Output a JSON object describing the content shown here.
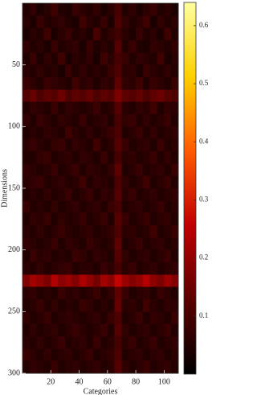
{
  "chart_data": {
    "type": "heatmap",
    "xlabel": "Categories",
    "ylabel": "Dimensions",
    "xbins": [
      0,
      5,
      10,
      15,
      20,
      25,
      30,
      35,
      40,
      45,
      50,
      55,
      60,
      65,
      70,
      75,
      80,
      85,
      90,
      95,
      100,
      105,
      110
    ],
    "ybins": [
      0,
      10,
      20,
      30,
      40,
      50,
      60,
      70,
      80,
      90,
      100,
      110,
      120,
      130,
      140,
      150,
      160,
      170,
      180,
      190,
      200,
      210,
      220,
      230,
      240,
      250,
      260,
      270,
      280,
      290,
      300
    ],
    "xlim": [
      0,
      110
    ],
    "ylim": [
      0,
      300
    ],
    "xticks": [
      20,
      40,
      60,
      80,
      100
    ],
    "yticks": [
      50,
      100,
      150,
      200,
      250,
      300
    ],
    "zlim": [
      0,
      0.64
    ],
    "zticks": [
      0.1,
      0.2,
      0.3,
      0.4,
      0.5,
      0.6
    ],
    "colormap": [
      "#000000",
      "#5a0000",
      "#c00000",
      "#ff5a00",
      "#ffd000",
      "#ffffa0"
    ],
    "values": [
      [
        0.05,
        0.07,
        0.04,
        0.06,
        0.09,
        0.05,
        0.04,
        0.08,
        0.06,
        0.05,
        0.07,
        0.04,
        0.06,
        0.1,
        0.05,
        0.07,
        0.04,
        0.06,
        0.08,
        0.05,
        0.06,
        0.04
      ],
      [
        0.06,
        0.04,
        0.08,
        0.05,
        0.06,
        0.07,
        0.05,
        0.04,
        0.09,
        0.06,
        0.05,
        0.08,
        0.04,
        0.11,
        0.07,
        0.05,
        0.06,
        0.09,
        0.04,
        0.07,
        0.05,
        0.06
      ],
      [
        0.04,
        0.06,
        0.05,
        0.09,
        0.04,
        0.06,
        0.08,
        0.05,
        0.06,
        0.04,
        0.1,
        0.05,
        0.07,
        0.09,
        0.06,
        0.04,
        0.08,
        0.05,
        0.06,
        0.04,
        0.09,
        0.05
      ],
      [
        0.07,
        0.05,
        0.06,
        0.04,
        0.08,
        0.05,
        0.06,
        0.07,
        0.04,
        0.08,
        0.05,
        0.06,
        0.05,
        0.12,
        0.05,
        0.08,
        0.05,
        0.04,
        0.07,
        0.06,
        0.05,
        0.07
      ],
      [
        0.05,
        0.08,
        0.04,
        0.07,
        0.05,
        0.09,
        0.04,
        0.06,
        0.05,
        0.07,
        0.04,
        0.09,
        0.06,
        0.1,
        0.08,
        0.05,
        0.07,
        0.06,
        0.05,
        0.09,
        0.04,
        0.06
      ],
      [
        0.06,
        0.05,
        0.07,
        0.05,
        0.06,
        0.04,
        0.08,
        0.05,
        0.07,
        0.05,
        0.06,
        0.05,
        0.08,
        0.11,
        0.06,
        0.07,
        0.04,
        0.08,
        0.06,
        0.05,
        0.07,
        0.05
      ],
      [
        0.08,
        0.06,
        0.05,
        0.08,
        0.07,
        0.06,
        0.05,
        0.09,
        0.06,
        0.07,
        0.05,
        0.07,
        0.06,
        0.13,
        0.07,
        0.06,
        0.09,
        0.05,
        0.08,
        0.06,
        0.05,
        0.08
      ],
      [
        0.12,
        0.14,
        0.11,
        0.13,
        0.12,
        0.15,
        0.11,
        0.13,
        0.12,
        0.14,
        0.11,
        0.13,
        0.12,
        0.17,
        0.13,
        0.12,
        0.14,
        0.11,
        0.13,
        0.15,
        0.12,
        0.11
      ],
      [
        0.05,
        0.07,
        0.06,
        0.05,
        0.08,
        0.05,
        0.07,
        0.06,
        0.05,
        0.06,
        0.08,
        0.05,
        0.06,
        0.12,
        0.06,
        0.05,
        0.07,
        0.06,
        0.09,
        0.05,
        0.07,
        0.06
      ],
      [
        0.07,
        0.05,
        0.08,
        0.06,
        0.05,
        0.07,
        0.06,
        0.05,
        0.08,
        0.05,
        0.06,
        0.07,
        0.05,
        0.1,
        0.07,
        0.08,
        0.05,
        0.07,
        0.05,
        0.06,
        0.08,
        0.05
      ],
      [
        0.05,
        0.06,
        0.05,
        0.07,
        0.06,
        0.05,
        0.09,
        0.06,
        0.05,
        0.07,
        0.05,
        0.06,
        0.08,
        0.11,
        0.05,
        0.06,
        0.08,
        0.05,
        0.07,
        0.05,
        0.06,
        0.07
      ],
      [
        0.06,
        0.08,
        0.06,
        0.05,
        0.07,
        0.08,
        0.05,
        0.07,
        0.06,
        0.05,
        0.09,
        0.05,
        0.06,
        0.12,
        0.08,
        0.05,
        0.06,
        0.07,
        0.05,
        0.08,
        0.05,
        0.06
      ],
      [
        0.05,
        0.05,
        0.07,
        0.08,
        0.05,
        0.06,
        0.07,
        0.05,
        0.07,
        0.06,
        0.05,
        0.08,
        0.05,
        0.1,
        0.06,
        0.07,
        0.05,
        0.06,
        0.08,
        0.05,
        0.07,
        0.05
      ],
      [
        0.07,
        0.06,
        0.05,
        0.06,
        0.08,
        0.05,
        0.06,
        0.08,
        0.05,
        0.07,
        0.06,
        0.05,
        0.07,
        0.13,
        0.05,
        0.06,
        0.08,
        0.05,
        0.06,
        0.07,
        0.05,
        0.08
      ],
      [
        0.06,
        0.07,
        0.08,
        0.05,
        0.06,
        0.07,
        0.05,
        0.06,
        0.09,
        0.05,
        0.07,
        0.06,
        0.05,
        0.11,
        0.07,
        0.05,
        0.06,
        0.09,
        0.05,
        0.06,
        0.08,
        0.05
      ],
      [
        0.05,
        0.06,
        0.05,
        0.07,
        0.05,
        0.06,
        0.08,
        0.05,
        0.06,
        0.08,
        0.05,
        0.07,
        0.06,
        0.12,
        0.06,
        0.08,
        0.05,
        0.06,
        0.07,
        0.05,
        0.06,
        0.07
      ],
      [
        0.08,
        0.05,
        0.06,
        0.05,
        0.07,
        0.05,
        0.06,
        0.07,
        0.05,
        0.06,
        0.07,
        0.05,
        0.08,
        0.1,
        0.05,
        0.06,
        0.07,
        0.05,
        0.06,
        0.08,
        0.05,
        0.06
      ],
      [
        0.05,
        0.07,
        0.06,
        0.08,
        0.05,
        0.07,
        0.05,
        0.06,
        0.08,
        0.05,
        0.06,
        0.08,
        0.05,
        0.12,
        0.08,
        0.05,
        0.06,
        0.08,
        0.05,
        0.06,
        0.07,
        0.05
      ],
      [
        0.06,
        0.05,
        0.07,
        0.05,
        0.06,
        0.08,
        0.06,
        0.05,
        0.06,
        0.07,
        0.05,
        0.06,
        0.07,
        0.11,
        0.06,
        0.07,
        0.05,
        0.06,
        0.09,
        0.05,
        0.06,
        0.08
      ],
      [
        0.07,
        0.06,
        0.05,
        0.06,
        0.08,
        0.05,
        0.07,
        0.06,
        0.05,
        0.08,
        0.06,
        0.05,
        0.06,
        0.13,
        0.05,
        0.06,
        0.08,
        0.05,
        0.06,
        0.07,
        0.05,
        0.06
      ],
      [
        0.05,
        0.08,
        0.06,
        0.07,
        0.05,
        0.06,
        0.05,
        0.08,
        0.07,
        0.05,
        0.07,
        0.06,
        0.05,
        0.12,
        0.07,
        0.05,
        0.06,
        0.07,
        0.05,
        0.06,
        0.08,
        0.05
      ],
      [
        0.06,
        0.05,
        0.07,
        0.05,
        0.06,
        0.07,
        0.08,
        0.05,
        0.06,
        0.06,
        0.05,
        0.08,
        0.06,
        0.1,
        0.06,
        0.08,
        0.05,
        0.06,
        0.07,
        0.05,
        0.06,
        0.07
      ],
      [
        0.18,
        0.22,
        0.2,
        0.17,
        0.24,
        0.19,
        0.21,
        0.18,
        0.23,
        0.2,
        0.16,
        0.22,
        0.19,
        0.26,
        0.21,
        0.18,
        0.2,
        0.24,
        0.19,
        0.17,
        0.21,
        0.18
      ],
      [
        0.06,
        0.07,
        0.05,
        0.06,
        0.05,
        0.08,
        0.06,
        0.07,
        0.05,
        0.06,
        0.08,
        0.05,
        0.07,
        0.13,
        0.08,
        0.05,
        0.06,
        0.07,
        0.05,
        0.08,
        0.06,
        0.05
      ],
      [
        0.05,
        0.06,
        0.08,
        0.05,
        0.07,
        0.05,
        0.06,
        0.05,
        0.08,
        0.07,
        0.05,
        0.06,
        0.05,
        0.14,
        0.06,
        0.07,
        0.05,
        0.09,
        0.06,
        0.05,
        0.07,
        0.06
      ],
      [
        0.07,
        0.05,
        0.06,
        0.08,
        0.05,
        0.06,
        0.07,
        0.06,
        0.05,
        0.06,
        0.07,
        0.05,
        0.08,
        0.11,
        0.05,
        0.06,
        0.08,
        0.05,
        0.07,
        0.06,
        0.05,
        0.08
      ],
      [
        0.05,
        0.07,
        0.05,
        0.06,
        0.07,
        0.05,
        0.06,
        0.08,
        0.06,
        0.05,
        0.06,
        0.08,
        0.05,
        0.12,
        0.07,
        0.05,
        0.06,
        0.07,
        0.05,
        0.06,
        0.08,
        0.05
      ],
      [
        0.06,
        0.05,
        0.07,
        0.05,
        0.06,
        0.08,
        0.05,
        0.06,
        0.07,
        0.05,
        0.08,
        0.05,
        0.06,
        0.1,
        0.06,
        0.08,
        0.05,
        0.06,
        0.08,
        0.05,
        0.06,
        0.07
      ],
      [
        0.08,
        0.06,
        0.05,
        0.07,
        0.05,
        0.06,
        0.07,
        0.05,
        0.06,
        0.08,
        0.05,
        0.06,
        0.07,
        0.11,
        0.05,
        0.06,
        0.07,
        0.05,
        0.06,
        0.07,
        0.05,
        0.06
      ],
      [
        0.05,
        0.07,
        0.06,
        0.05,
        0.08,
        0.05,
        0.06,
        0.07,
        0.05,
        0.06,
        0.07,
        0.05,
        0.06,
        0.12,
        0.07,
        0.05,
        0.06,
        0.08,
        0.05,
        0.06,
        0.07,
        0.05
      ]
    ]
  }
}
